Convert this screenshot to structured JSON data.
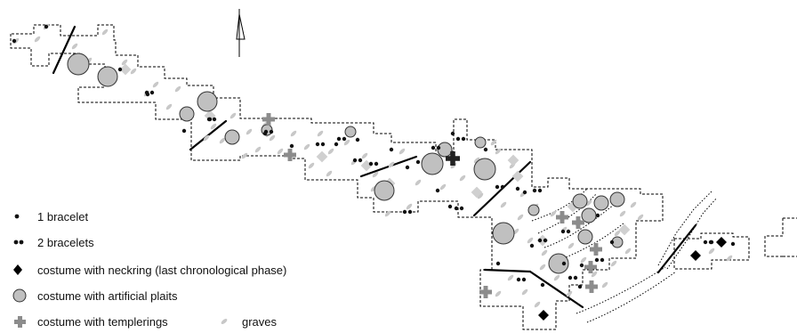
{
  "legend": {
    "one_bracelet": "1 bracelet",
    "two_bracelets": "2 bracelets",
    "neckring": "costume with neckring (last chronological phase)",
    "plaits": "costume with artificial plaits",
    "templerings": "costume with templerings",
    "graves": "graves"
  },
  "colors": {
    "outline": "#000000",
    "grave": "#c8c8c8",
    "plaits_fill": "#c0c0c0",
    "cross": "#8c8c8c",
    "neckring": "#000000"
  },
  "icons": {
    "north_arrow": "north-arrow-icon",
    "bracelet": "dot-icon",
    "plaits": "circle-icon",
    "templerings": "plus-icon",
    "neckring": "diamond-icon"
  }
}
